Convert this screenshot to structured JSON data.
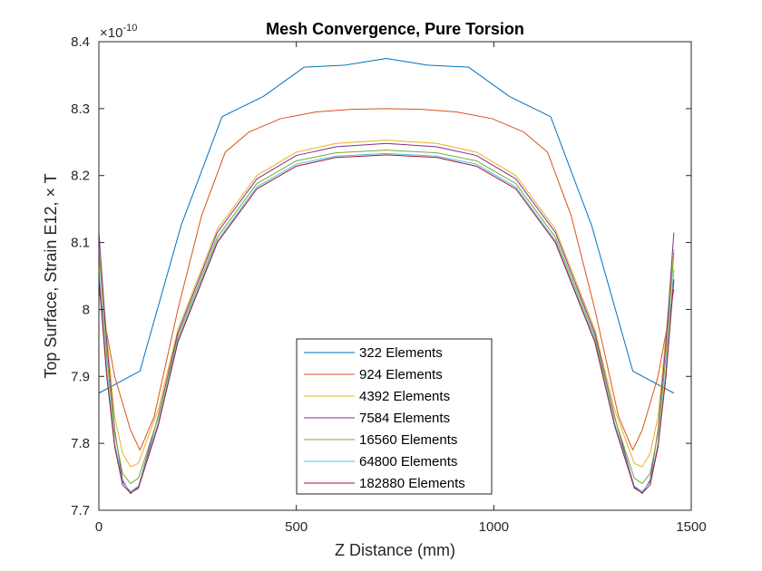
{
  "chart_data": {
    "type": "line",
    "title": "Mesh Convergence, Pure Torsion",
    "xlabel": "Z Distance (mm)",
    "ylabel": "Top Surface, Strain E12, × T",
    "y_exponent_base": "×10",
    "y_exponent_power": "-10",
    "xlim": [
      0,
      1500
    ],
    "ylim": [
      7.7,
      8.4
    ],
    "xticks": [
      0,
      500,
      1000,
      1500
    ],
    "xtick_labels": [
      "0",
      "500",
      "1000",
      "1500"
    ],
    "yticks": [
      7.7,
      7.8,
      7.9,
      8.0,
      8.1,
      8.2,
      8.3,
      8.4
    ],
    "ytick_labels": [
      "7.7",
      "7.8",
      "7.9",
      "8",
      "8.1",
      "8.2",
      "8.3",
      "8.4"
    ],
    "grid": false,
    "legend_position": "bottom-center",
    "series": [
      {
        "name": "322 Elements",
        "color": "#0072BD",
        "x": [
          0,
          104,
          208,
          312,
          416,
          520,
          624,
          728,
          832,
          936,
          1040,
          1144,
          1248,
          1352,
          1456
        ],
        "y": [
          7.875,
          7.908,
          8.125,
          8.288,
          8.318,
          8.362,
          8.365,
          8.375,
          8.365,
          8.362,
          8.318,
          8.288,
          8.125,
          7.908,
          7.875
        ]
      },
      {
        "name": "924 Elements",
        "color": "#D95319",
        "x": [
          0,
          40,
          80,
          104,
          140,
          200,
          260,
          320,
          380,
          460,
          550,
          640,
          728,
          816,
          906,
          996,
          1076,
          1136,
          1196,
          1256,
          1316,
          1352,
          1376,
          1416,
          1456
        ],
        "y": [
          8.03,
          7.9,
          7.82,
          7.79,
          7.84,
          8.0,
          8.14,
          8.235,
          8.265,
          8.285,
          8.295,
          8.299,
          8.3,
          8.299,
          8.295,
          8.285,
          8.265,
          8.235,
          8.14,
          8.0,
          7.84,
          7.79,
          7.82,
          7.9,
          8.03
        ]
      },
      {
        "name": "4392 Elements",
        "color": "#EDB120",
        "x": [
          0,
          20,
          40,
          60,
          80,
          100,
          150,
          200,
          300,
          400,
          500,
          600,
          728,
          856,
          956,
          1056,
          1156,
          1256,
          1306,
          1356,
          1376,
          1396,
          1416,
          1436,
          1456
        ],
        "y": [
          8.09,
          7.96,
          7.84,
          7.785,
          7.765,
          7.77,
          7.85,
          7.97,
          8.12,
          8.2,
          8.235,
          8.248,
          8.253,
          8.248,
          8.235,
          8.2,
          8.12,
          7.97,
          7.85,
          7.77,
          7.765,
          7.785,
          7.84,
          7.96,
          8.09
        ]
      },
      {
        "name": "7584 Elements",
        "color": "#7E2F8E",
        "x": [
          0,
          20,
          40,
          60,
          80,
          100,
          150,
          200,
          300,
          400,
          500,
          600,
          728,
          856,
          956,
          1056,
          1156,
          1256,
          1306,
          1356,
          1376,
          1396,
          1416,
          1436,
          1456
        ],
        "y": [
          8.115,
          7.95,
          7.82,
          7.745,
          7.725,
          7.735,
          7.84,
          7.965,
          8.115,
          8.195,
          8.23,
          8.243,
          8.248,
          8.243,
          8.23,
          8.195,
          8.115,
          7.965,
          7.84,
          7.735,
          7.725,
          7.745,
          7.82,
          7.95,
          8.115
        ]
      },
      {
        "name": "16560 Elements",
        "color": "#77AC30",
        "x": [
          0,
          20,
          40,
          60,
          80,
          100,
          150,
          200,
          300,
          400,
          500,
          600,
          728,
          856,
          956,
          1056,
          1156,
          1256,
          1306,
          1356,
          1376,
          1396,
          1416,
          1436,
          1456
        ],
        "y": [
          8.085,
          7.93,
          7.815,
          7.755,
          7.74,
          7.748,
          7.838,
          7.96,
          8.108,
          8.188,
          8.222,
          8.234,
          8.238,
          8.234,
          8.222,
          8.188,
          8.108,
          7.96,
          7.838,
          7.748,
          7.74,
          7.755,
          7.815,
          7.93,
          8.085
        ]
      },
      {
        "name": "64800 Elements",
        "color": "#4DBEEE",
        "x": [
          0,
          20,
          40,
          60,
          80,
          100,
          150,
          200,
          300,
          400,
          500,
          600,
          728,
          856,
          956,
          1056,
          1156,
          1256,
          1306,
          1356,
          1376,
          1396,
          1416,
          1436,
          1456
        ],
        "y": [
          8.06,
          7.91,
          7.8,
          7.742,
          7.728,
          7.736,
          7.83,
          7.955,
          8.103,
          8.183,
          8.217,
          8.229,
          8.233,
          8.229,
          8.217,
          8.183,
          8.103,
          7.955,
          7.83,
          7.736,
          7.728,
          7.742,
          7.8,
          7.91,
          8.06
        ]
      },
      {
        "name": "182880 Elements",
        "color": "#A2142F",
        "x": [
          0,
          20,
          40,
          60,
          80,
          100,
          150,
          200,
          300,
          400,
          500,
          600,
          728,
          856,
          956,
          1056,
          1156,
          1256,
          1306,
          1356,
          1376,
          1396,
          1416,
          1436,
          1456
        ],
        "y": [
          8.045,
          7.9,
          7.795,
          7.738,
          7.726,
          7.733,
          7.826,
          7.951,
          8.1,
          8.18,
          8.214,
          8.227,
          8.231,
          8.227,
          8.214,
          8.18,
          8.1,
          7.951,
          7.826,
          7.733,
          7.726,
          7.738,
          7.795,
          7.9,
          8.045
        ]
      }
    ]
  }
}
